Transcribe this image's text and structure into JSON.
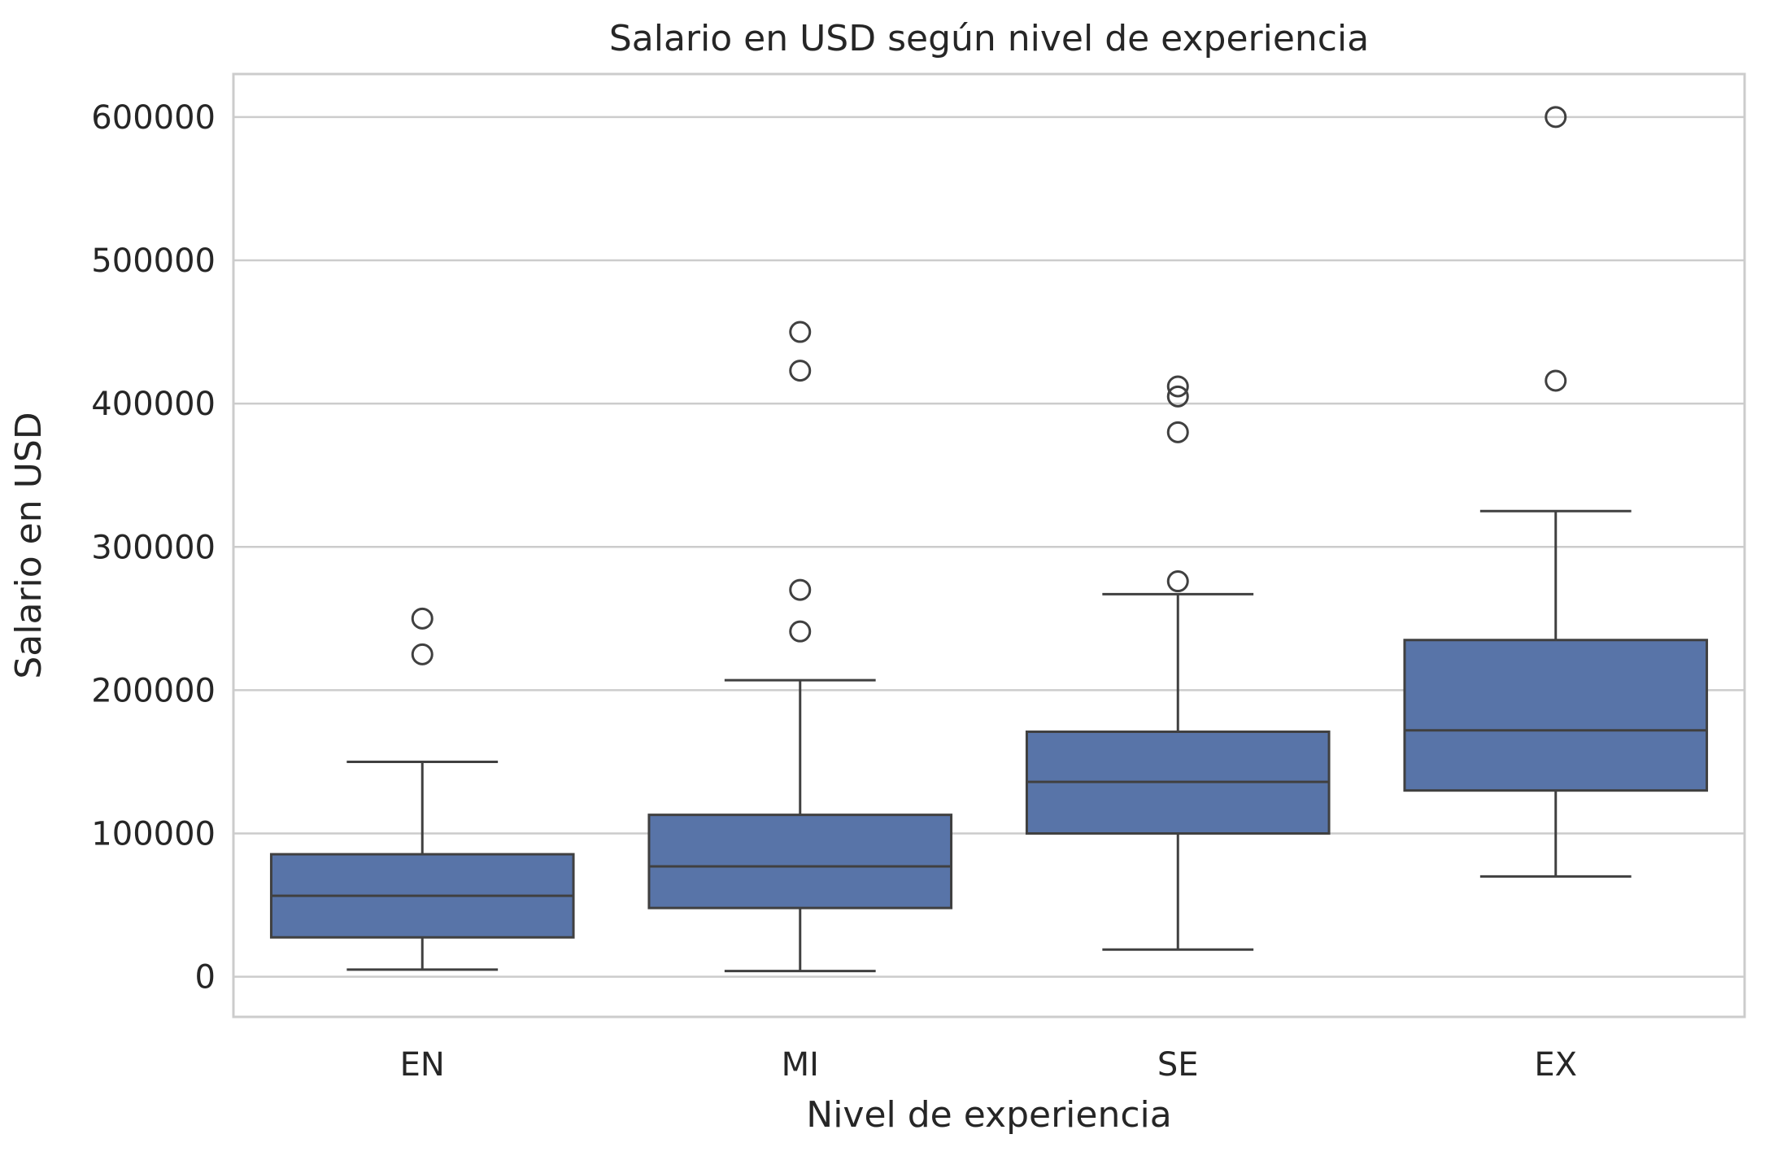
{
  "chart_data": {
    "type": "box",
    "title": "Salario en USD según nivel de experiencia",
    "xlabel": "Nivel de experiencia",
    "ylabel": "Salario en USD",
    "ylim": [
      -28000,
      630000
    ],
    "yticks": [
      0,
      100000,
      200000,
      300000,
      400000,
      500000,
      600000
    ],
    "ytick_labels": [
      "0",
      "100000",
      "200000",
      "300000",
      "400000",
      "500000",
      "600000"
    ],
    "grid": true,
    "categories": [
      "EN",
      "MI",
      "SE",
      "EX"
    ],
    "series": [
      {
        "boxes": [
          {
            "category": "EN",
            "whisker_low": 5000,
            "q1": 27500,
            "median": 56500,
            "q3": 85500,
            "whisker_high": 150000,
            "outliers": [
              225000,
              250000
            ]
          },
          {
            "category": "MI",
            "whisker_low": 4000,
            "q1": 48000,
            "median": 77000,
            "q3": 113000,
            "whisker_high": 207000,
            "outliers": [
              241000,
              270000,
              423000,
              450000
            ]
          },
          {
            "category": "SE",
            "whisker_low": 19000,
            "q1": 100000,
            "median": 136000,
            "q3": 171000,
            "whisker_high": 267000,
            "outliers": [
              276000,
              380000,
              405000,
              412000
            ]
          },
          {
            "category": "EX",
            "whisker_low": 70000,
            "q1": 130000,
            "median": 172000,
            "q3": 235000,
            "whisker_high": 325000,
            "outliers": [
              416000,
              600000
            ]
          }
        ]
      }
    ],
    "colors": {
      "box_fill": "#5874a8",
      "line": "#404040",
      "grid": "#cccccc",
      "spine": "#cccccc",
      "text": "#262626"
    }
  }
}
